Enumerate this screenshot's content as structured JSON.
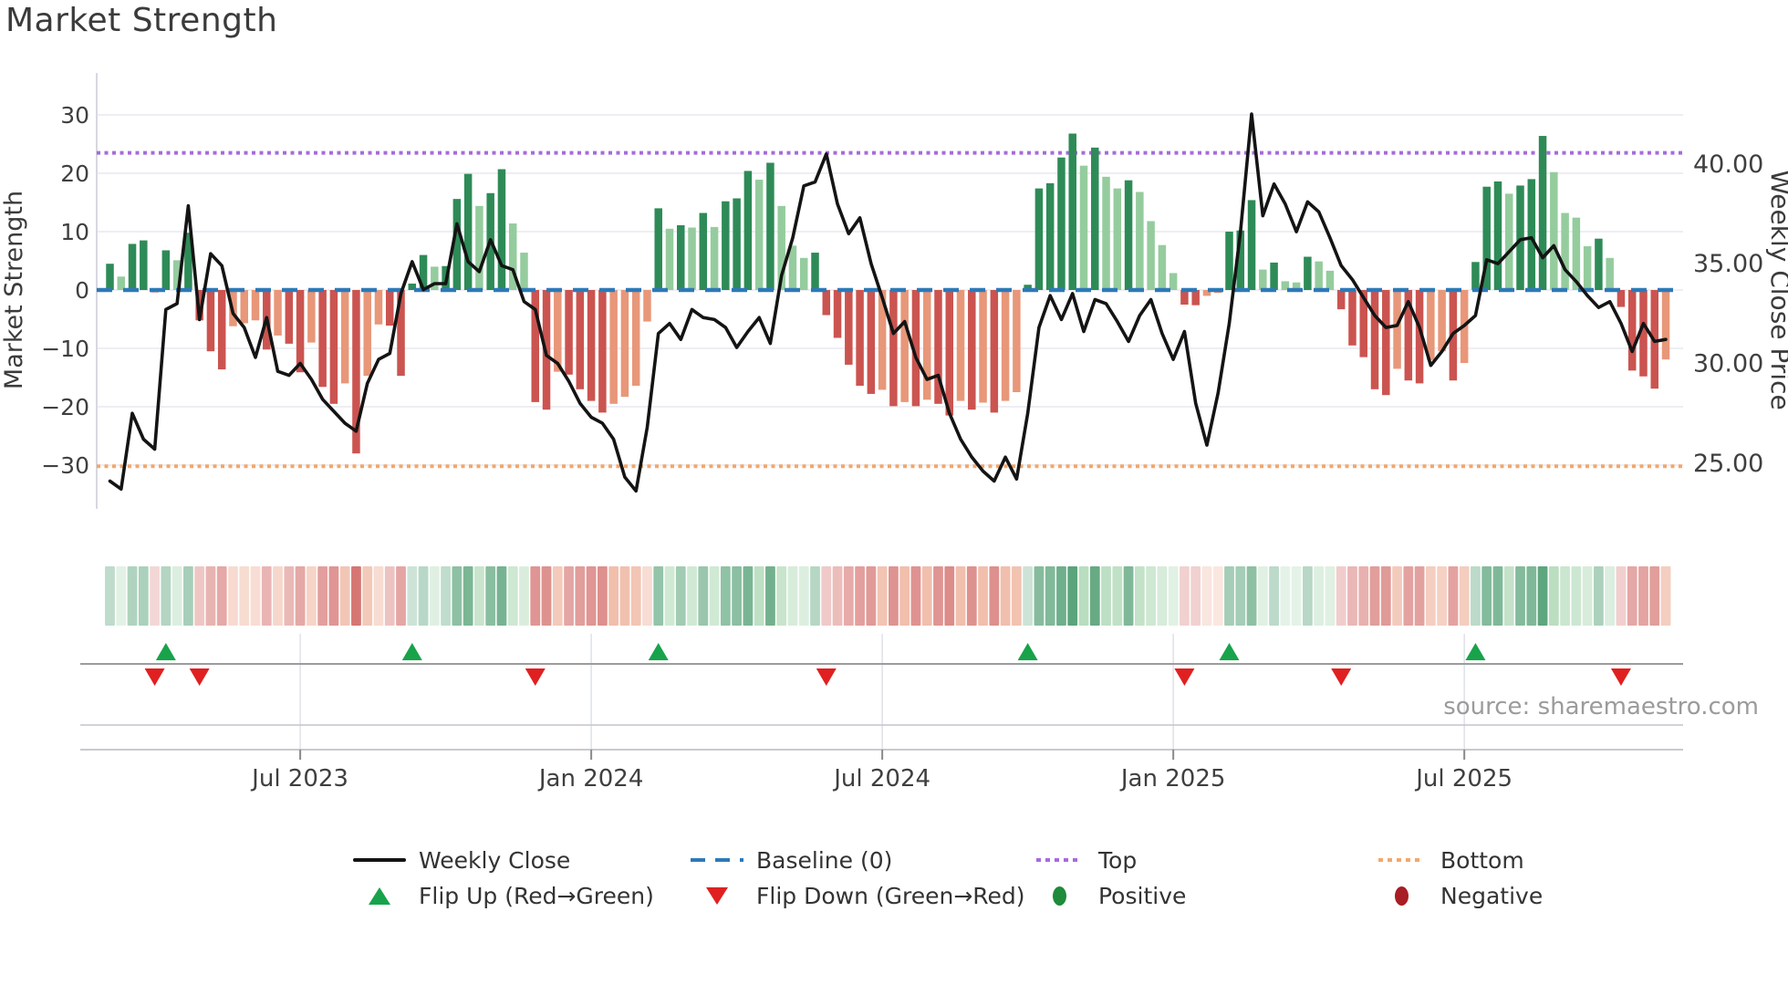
{
  "title": "Market Strength",
  "source": "source: sharemaestro.com",
  "axes": {
    "left_label": "Market Strength",
    "right_label": "Weekly Close Price",
    "left_ticks": [
      {
        "value": 30,
        "label": "30"
      },
      {
        "value": 20,
        "label": "20"
      },
      {
        "value": 10,
        "label": "10"
      },
      {
        "value": 0,
        "label": "0"
      },
      {
        "value": -10,
        "label": "−10"
      },
      {
        "value": -20,
        "label": "−20"
      },
      {
        "value": -30,
        "label": "−30"
      }
    ],
    "right_ticks": [
      {
        "value": 40,
        "label": "40.00"
      },
      {
        "value": 35,
        "label": "35.00"
      },
      {
        "value": 30,
        "label": "30.00"
      },
      {
        "value": 25,
        "label": "25.00"
      }
    ],
    "x_ticks": [
      {
        "week": 17,
        "label": "Jul 2023"
      },
      {
        "week": 43,
        "label": "Jan 2024"
      },
      {
        "week": 69,
        "label": "Jul 2024"
      },
      {
        "week": 95,
        "label": "Jan 2025"
      },
      {
        "week": 121,
        "label": "Jul 2025"
      }
    ]
  },
  "legend": {
    "row1": [
      {
        "label": "Weekly Close",
        "glyph": "line"
      },
      {
        "label": "Baseline (0)",
        "glyph": "dash-blue"
      },
      {
        "label": "Top",
        "glyph": "dot-purple"
      },
      {
        "label": "Bottom",
        "glyph": "dot-orange"
      }
    ],
    "row2": [
      {
        "label": "Flip Up (Red→Green)",
        "glyph": "triangle-up-green"
      },
      {
        "label": "Flip Down (Green→Red)",
        "glyph": "triangle-down-red"
      },
      {
        "label": "Positive",
        "glyph": "ellipse-green"
      },
      {
        "label": "Negative",
        "glyph": "ellipse-red"
      }
    ]
  },
  "colors": {
    "pos_strong": "#2e8b57",
    "pos_weak": "#95cc9e",
    "neg_strong": "#cb5450",
    "neg_weak": "#e89779",
    "line": "#141414",
    "baseline": "#2e79b8",
    "top": "#a66bdd",
    "bottom": "#f3a76b",
    "grid": "#e8e8f0",
    "rule": "#9c9c9c",
    "flip_up": "#18a34b",
    "flip_down": "#e02020",
    "tick_text": "#3f3f3f",
    "title_text": "#3b3b3b"
  },
  "chart_data": {
    "type": "bar",
    "title": "Market Strength",
    "series": [
      {
        "name": "Market Strength",
        "type": "bar",
        "axis": "left",
        "values": [
          4.5,
          2.3,
          7.9,
          8.5,
          -0.4,
          6.8,
          5.1,
          9.8,
          -5.2,
          -10.5,
          -13.6,
          -6.2,
          -5.7,
          -5.2,
          -10.2,
          -7.8,
          -9.2,
          -14.1,
          -9.0,
          -16.6,
          -19.5,
          -16.0,
          -28.0,
          -14.7,
          -5.9,
          -6.1,
          -14.7,
          1.1,
          6.0,
          4.0,
          4.1,
          15.6,
          19.9,
          14.4,
          16.6,
          20.7,
          11.4,
          6.4,
          -19.2,
          -20.5,
          -14.0,
          -14.5,
          -17.0,
          -19.0,
          -21.0,
          -19.5,
          -18.3,
          -16.4,
          -5.4,
          14.0,
          10.5,
          11.1,
          10.7,
          13.2,
          10.8,
          15.2,
          15.7,
          20.4,
          18.9,
          21.8,
          14.4,
          7.6,
          5.5,
          6.4,
          -4.3,
          -8.2,
          -12.8,
          -16.4,
          -17.8,
          -17.1,
          -19.9,
          -19.2,
          -19.9,
          -18.8,
          -19.5,
          -21.5,
          -19.0,
          -20.5,
          -19.3,
          -21.0,
          -19.0,
          -17.5,
          0.9,
          17.4,
          18.3,
          22.7,
          26.8,
          21.3,
          24.4,
          19.4,
          17.4,
          18.8,
          16.8,
          11.8,
          7.7,
          2.9,
          -2.5,
          -2.6,
          -1.0,
          -0.5,
          10.0,
          10.2,
          15.4,
          3.5,
          4.7,
          1.5,
          1.3,
          5.7,
          4.9,
          3.3,
          -3.3,
          -9.5,
          -11.5,
          -17.0,
          -18.0,
          -13.5,
          -15.5,
          -16.0,
          -12.0,
          -10.5,
          -15.5,
          -12.5,
          4.8,
          17.7,
          18.6,
          16.5,
          17.9,
          19.0,
          26.4,
          20.2,
          13.2,
          12.4,
          7.5,
          8.8,
          5.5,
          -2.9,
          -13.8,
          -14.8,
          -16.9,
          -11.9
        ]
      },
      {
        "name": "Weekly Close",
        "type": "line",
        "axis": "right",
        "values": [
          24.1,
          23.7,
          27.5,
          26.2,
          25.7,
          32.7,
          33.0,
          37.9,
          32.2,
          35.5,
          34.9,
          32.5,
          31.8,
          30.3,
          32.3,
          29.6,
          29.4,
          30.0,
          29.2,
          28.2,
          27.6,
          27.0,
          26.6,
          29.0,
          30.2,
          30.5,
          33.5,
          35.1,
          33.7,
          34.0,
          34.0,
          37.0,
          35.1,
          34.6,
          36.2,
          34.9,
          34.7,
          33.1,
          32.7,
          30.4,
          30.0,
          29.1,
          28.0,
          27.3,
          27.0,
          26.2,
          24.3,
          23.6,
          26.8,
          31.5,
          32.0,
          31.2,
          32.7,
          32.3,
          32.2,
          31.8,
          30.8,
          31.6,
          32.3,
          31.0,
          34.4,
          36.3,
          38.9,
          39.1,
          40.5,
          38.0,
          36.5,
          37.3,
          35.0,
          33.3,
          31.5,
          32.1,
          30.3,
          29.2,
          29.4,
          27.5,
          26.2,
          25.3,
          24.6,
          24.1,
          25.3,
          24.2,
          27.5,
          31.8,
          33.4,
          32.2,
          33.5,
          31.6,
          33.2,
          33.0,
          32.1,
          31.1,
          32.4,
          33.2,
          31.5,
          30.2,
          31.6,
          28.0,
          25.9,
          28.5,
          32.0,
          36.6,
          42.5,
          37.4,
          39.0,
          38.0,
          36.6,
          38.1,
          37.6,
          36.3,
          34.9,
          34.2,
          33.3,
          32.4,
          31.8,
          31.9,
          33.1,
          31.8,
          29.9,
          30.6,
          31.5,
          31.9,
          32.4,
          35.2,
          35.0,
          35.6,
          36.2,
          36.3,
          35.3,
          35.9,
          34.7,
          34.1,
          33.4,
          32.8,
          33.1,
          32.0,
          30.6,
          32.0,
          31.1,
          31.2
        ]
      }
    ],
    "reference_lines": {
      "baseline": {
        "label": "Baseline (0)",
        "value": 0
      },
      "top": {
        "label": "Top",
        "value": 23.5
      },
      "bottom": {
        "label": "Bottom",
        "value": -30.2
      }
    },
    "flip_up_weeks": [
      5,
      27,
      49,
      82,
      100,
      122
    ],
    "flip_down_weeks": [
      4,
      8,
      38,
      64,
      96,
      110,
      135
    ],
    "ylim_left": [
      -36.5,
      36.7
    ],
    "ylim_right_labels": [
      25.0,
      30.0,
      35.0,
      40.0
    ],
    "xlabel": "",
    "ylabel_left": "Market Strength",
    "ylabel_right": "Weekly Close Price",
    "legend_position": "bottom",
    "grid": true
  }
}
